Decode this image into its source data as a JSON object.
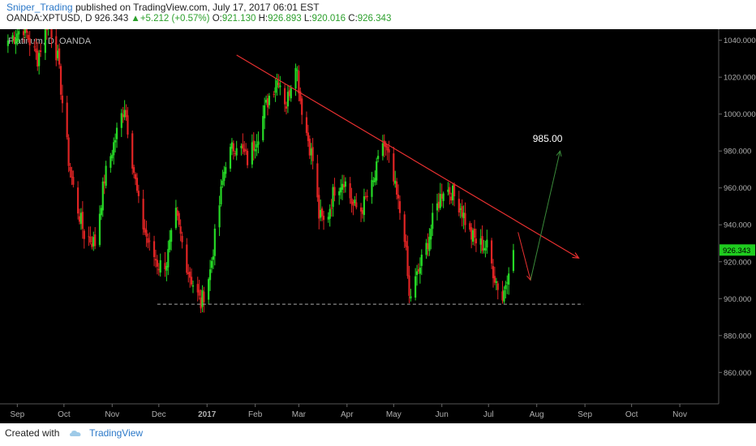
{
  "header": {
    "author": "Sniper_Trading",
    "published": "published on TradingView.com, July 17, 2017 06:01 EST",
    "symbol": "OANDA:XPTUSD, D",
    "last": "926.343",
    "up_arrow": "▲",
    "change": "+5.212 (+0.57%)",
    "o_label": "O:",
    "o": "921.130",
    "h_label": "H:",
    "h": "926.893",
    "l_label": "L:",
    "l": "920.016",
    "c_label": "C:",
    "c": "926.343"
  },
  "footer": {
    "created_with": "Created with",
    "brand": "TradingView"
  },
  "colors": {
    "up": "#26d926",
    "down": "#e02424",
    "trend": "#e83030",
    "arrow_down": "#e83030",
    "arrow_up": "#3a8a3a",
    "price_tag": "#1fcc1f"
  },
  "chart_data": {
    "type": "candlestick",
    "title": "Platinum, D, OANDA",
    "y_range": [
      843,
      1046
    ],
    "y_ticks": [
      860,
      880,
      900,
      920,
      940,
      960,
      980,
      1000,
      1020,
      1040
    ],
    "y_tick_labels": [
      "860.000",
      "880.000",
      "900.000",
      "920.000",
      "940.000",
      "960.000",
      "980.000",
      "1000.000",
      "1020.000",
      "1040.000"
    ],
    "x_range": [
      "2016-08-24",
      "2016-11-26"
    ],
    "x_ticks": [
      {
        "date": "2016-09-01",
        "label": "Sep"
      },
      {
        "date": "2016-10-01",
        "label": "Oct"
      },
      {
        "date": "2016-11-01",
        "label": "Nov"
      },
      {
        "date": "2016-12-01",
        "label": "Dec"
      },
      {
        "date": "2017-01-01",
        "label": "2017"
      },
      {
        "date": "2017-02-01",
        "label": "Feb"
      },
      {
        "date": "2017-03-01",
        "label": "Mar"
      },
      {
        "date": "2017-04-01",
        "label": "Apr"
      },
      {
        "date": "2017-05-01",
        "label": "May"
      },
      {
        "date": "2017-06-01",
        "label": "Jun"
      },
      {
        "date": "2017-07-01",
        "label": "Jul"
      },
      {
        "date": "2017-08-01",
        "label": "Aug"
      },
      {
        "date": "2017-09-01",
        "label": "Sep"
      },
      {
        "date": "2017-10-01",
        "label": "Oct"
      },
      {
        "date": "2017-11-01",
        "label": "Nov"
      }
    ],
    "price_path": [
      [
        "2016-08-26",
        1040
      ],
      [
        "2016-09-05",
        1047
      ],
      [
        "2016-09-14",
        1030
      ],
      [
        "2016-09-21",
        1052
      ],
      [
        "2016-09-27",
        1030
      ],
      [
        "2016-10-04",
        975
      ],
      [
        "2016-10-08",
        955
      ],
      [
        "2016-10-14",
        935
      ],
      [
        "2016-10-21",
        930
      ],
      [
        "2016-10-27",
        965
      ],
      [
        "2016-11-04",
        990
      ],
      [
        "2016-11-09",
        1005
      ],
      [
        "2016-11-14",
        975
      ],
      [
        "2016-11-19",
        945
      ],
      [
        "2016-11-25",
        928
      ],
      [
        "2016-12-01",
        918
      ],
      [
        "2016-12-06",
        920
      ],
      [
        "2016-12-12",
        945
      ],
      [
        "2016-12-20",
        915
      ],
      [
        "2016-12-28",
        897
      ],
      [
        "2017-01-03",
        915
      ],
      [
        "2017-01-08",
        945
      ],
      [
        "2017-01-13",
        975
      ],
      [
        "2017-01-20",
        985
      ],
      [
        "2017-01-27",
        975
      ],
      [
        "2017-02-03",
        990
      ],
      [
        "2017-02-10",
        1010
      ],
      [
        "2017-02-16",
        1020
      ],
      [
        "2017-02-21",
        1005
      ],
      [
        "2017-02-27",
        1030
      ],
      [
        "2017-03-02",
        1008
      ],
      [
        "2017-03-06",
        990
      ],
      [
        "2017-03-10",
        975
      ],
      [
        "2017-03-14",
        945
      ],
      [
        "2017-03-18",
        940
      ],
      [
        "2017-03-24",
        960
      ],
      [
        "2017-03-30",
        965
      ],
      [
        "2017-04-05",
        950
      ],
      [
        "2017-04-10",
        948
      ],
      [
        "2017-04-18",
        962
      ],
      [
        "2017-04-24",
        985
      ],
      [
        "2017-04-28",
        975
      ],
      [
        "2017-05-03",
        955
      ],
      [
        "2017-05-08",
        935
      ],
      [
        "2017-05-11",
        900
      ],
      [
        "2017-05-16",
        912
      ],
      [
        "2017-05-22",
        928
      ],
      [
        "2017-05-27",
        945
      ],
      [
        "2017-06-02",
        960
      ],
      [
        "2017-06-07",
        958
      ],
      [
        "2017-06-13",
        950
      ],
      [
        "2017-06-19",
        935
      ],
      [
        "2017-06-24",
        930
      ],
      [
        "2017-06-30",
        928
      ],
      [
        "2017-07-05",
        912
      ],
      [
        "2017-07-10",
        900
      ],
      [
        "2017-07-14",
        918
      ],
      [
        "2017-07-17",
        926
      ]
    ],
    "trendline": {
      "from": [
        "2017-01-20",
        1032
      ],
      "to": [
        "2017-08-28",
        922
      ],
      "color": "#e83030"
    },
    "support_line": {
      "from": [
        "2016-11-30",
        897
      ],
      "to": [
        "2017-08-31",
        897
      ],
      "style": "dashed"
    },
    "arrow_down": {
      "from": [
        "2017-07-20",
        936
      ],
      "to": [
        "2017-07-28",
        910
      ]
    },
    "arrow_up": {
      "from": [
        "2017-07-28",
        910
      ],
      "to": [
        "2017-08-16",
        980
      ]
    },
    "annotation": {
      "text": "985.00",
      "at": [
        "2017-08-08",
        985
      ]
    },
    "last_price_label": "926.343",
    "last_price": 926.343
  }
}
